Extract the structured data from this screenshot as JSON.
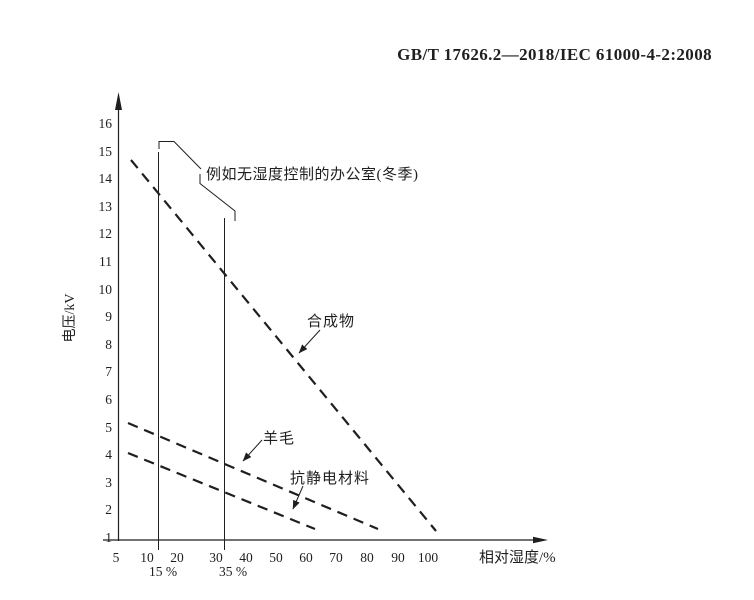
{
  "page": {
    "background_color": "#ffffff",
    "ink_color": "#1f1f1f"
  },
  "header": {
    "standard_ref": "GB/T 17626.2—2018/IEC 61000-4-2:2008"
  },
  "chart_data": {
    "type": "line",
    "title": "",
    "xlabel": "相对湿度/%",
    "ylabel": "电压/kV",
    "x_ticks": [
      "5",
      "10",
      "20",
      "30",
      "40",
      "50",
      "60",
      "70",
      "80",
      "90",
      "100"
    ],
    "y_ticks": [
      "1",
      "2",
      "3",
      "4",
      "5",
      "6",
      "7",
      "8",
      "9",
      "10",
      "11",
      "12",
      "13",
      "14",
      "15",
      "16"
    ],
    "ylim": [
      1,
      16
    ],
    "xlim": [
      5,
      110
    ],
    "grid": false,
    "legend_position": "inline-labels",
    "line_style": "dashed",
    "axis_note": "x ticks 5,10,20...100 drawn equally spaced (compressed humidity scale); y axis linear 1-16 kV",
    "series": [
      {
        "name": "合成物",
        "style": "dashed",
        "points_x_pct": [
          7,
          100
        ],
        "points_y_kV": [
          14.7,
          1.3
        ]
      },
      {
        "name": "羊毛",
        "style": "dashed",
        "points_x_pct": [
          7,
          83
        ],
        "points_y_kV": [
          5.2,
          1.4
        ]
      },
      {
        "name": "抗静电材料",
        "style": "dashed",
        "points_x_pct": [
          7,
          63
        ],
        "points_y_kV": [
          4.1,
          1.4
        ]
      }
    ],
    "reference_lines": [
      {
        "label": "15 %",
        "x_pct": 15,
        "top_kV": 15
      },
      {
        "label": "35 %",
        "x_pct": 35,
        "top_kV": 12.6
      }
    ],
    "annotation": "例如无湿度控制的办公室(冬季)"
  }
}
